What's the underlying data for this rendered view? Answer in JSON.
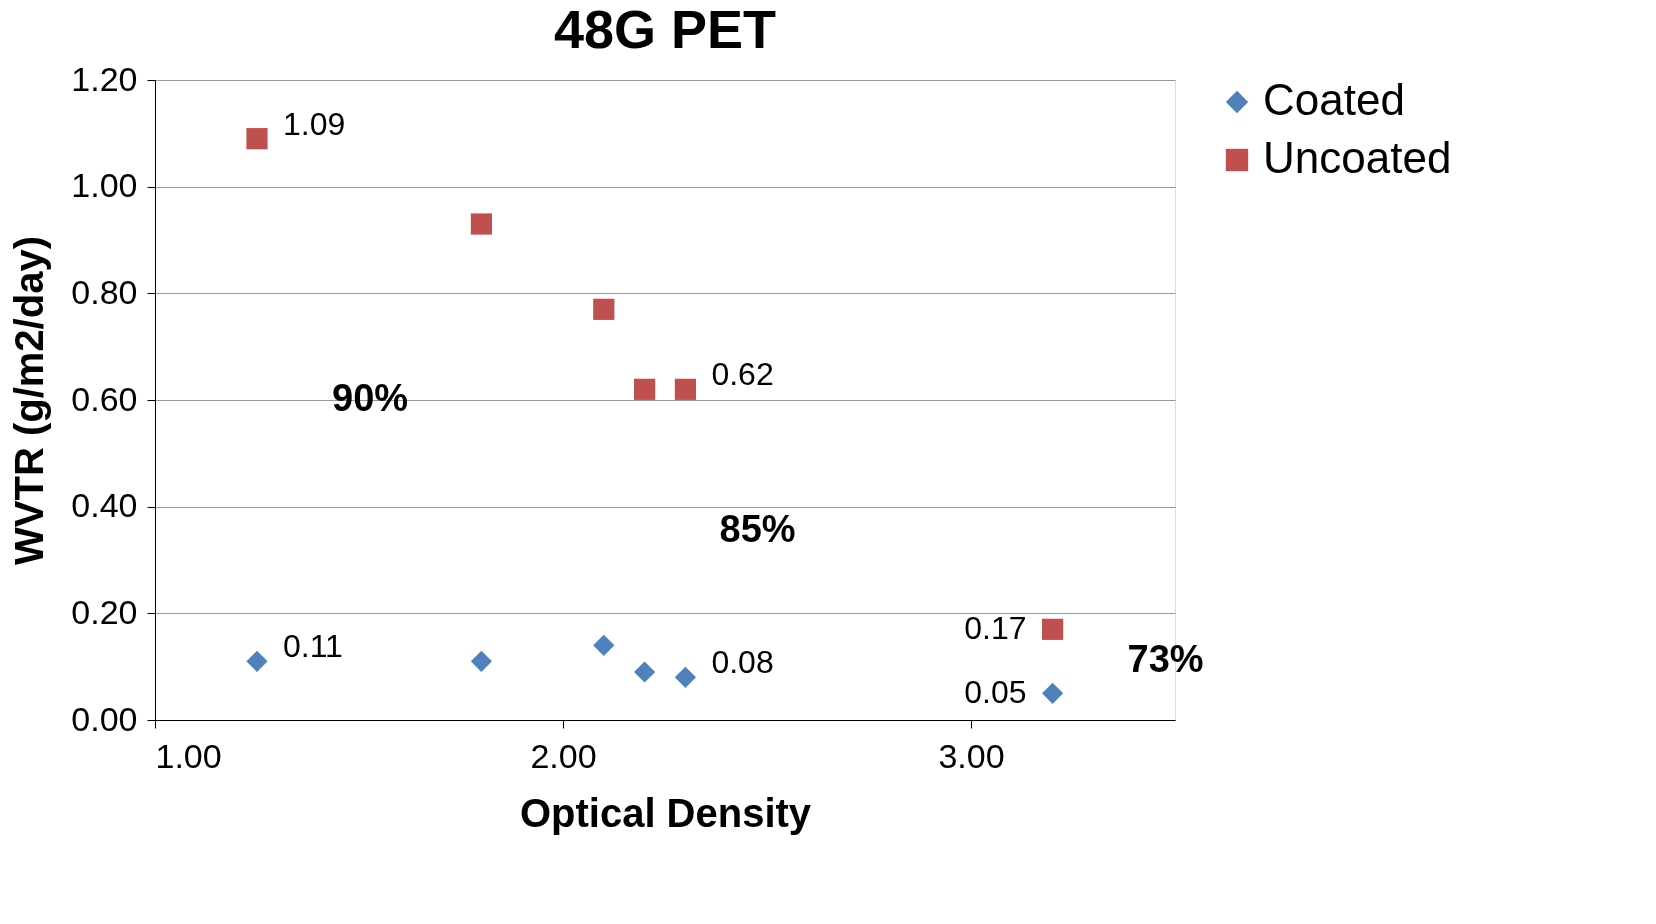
{
  "chart_data": {
    "type": "scatter",
    "title": "48G PET",
    "xlabel": "Optical Density",
    "ylabel": "WVTR (g/m2/day)",
    "x": [
      1.25,
      1.8,
      2.1,
      2.2,
      2.3,
      3.2
    ],
    "series": [
      {
        "name": "Coated",
        "color": "#4f81bd",
        "marker": "diamond",
        "values": [
          0.11,
          0.11,
          0.14,
          0.09,
          0.08,
          0.05
        ],
        "value_labels": [
          "0.11",
          null,
          null,
          null,
          "0.08",
          "0.05"
        ]
      },
      {
        "name": "Uncoated",
        "color": "#c0504d",
        "marker": "square",
        "values": [
          1.09,
          0.93,
          0.77,
          0.62,
          0.62,
          0.17
        ],
        "value_labels": [
          "1.09",
          null,
          null,
          null,
          "0.62",
          "0.17"
        ]
      }
    ],
    "xlim": [
      1.0,
      3.5
    ],
    "xticks": [
      {
        "value": 1,
        "label": "1.00"
      },
      {
        "value": 2,
        "label": "2.00"
      },
      {
        "value": 3,
        "label": "3.00"
      }
    ],
    "ylim": [
      0,
      1.2
    ],
    "yticks": [
      {
        "value": 0,
        "label": "0.00"
      },
      {
        "value": 0.2,
        "label": "0.20"
      },
      {
        "value": 0.4,
        "label": "0.40"
      },
      {
        "value": 0.6,
        "label": "0.60"
      },
      {
        "value": 0.8,
        "label": "0.80"
      },
      {
        "value": 1.0,
        "label": "1.00"
      },
      {
        "value": 1.2,
        "label": "1.20"
      }
    ],
    "grid": "y",
    "legend": "right",
    "annotations": [
      "90%",
      "85%",
      "73%"
    ]
  }
}
